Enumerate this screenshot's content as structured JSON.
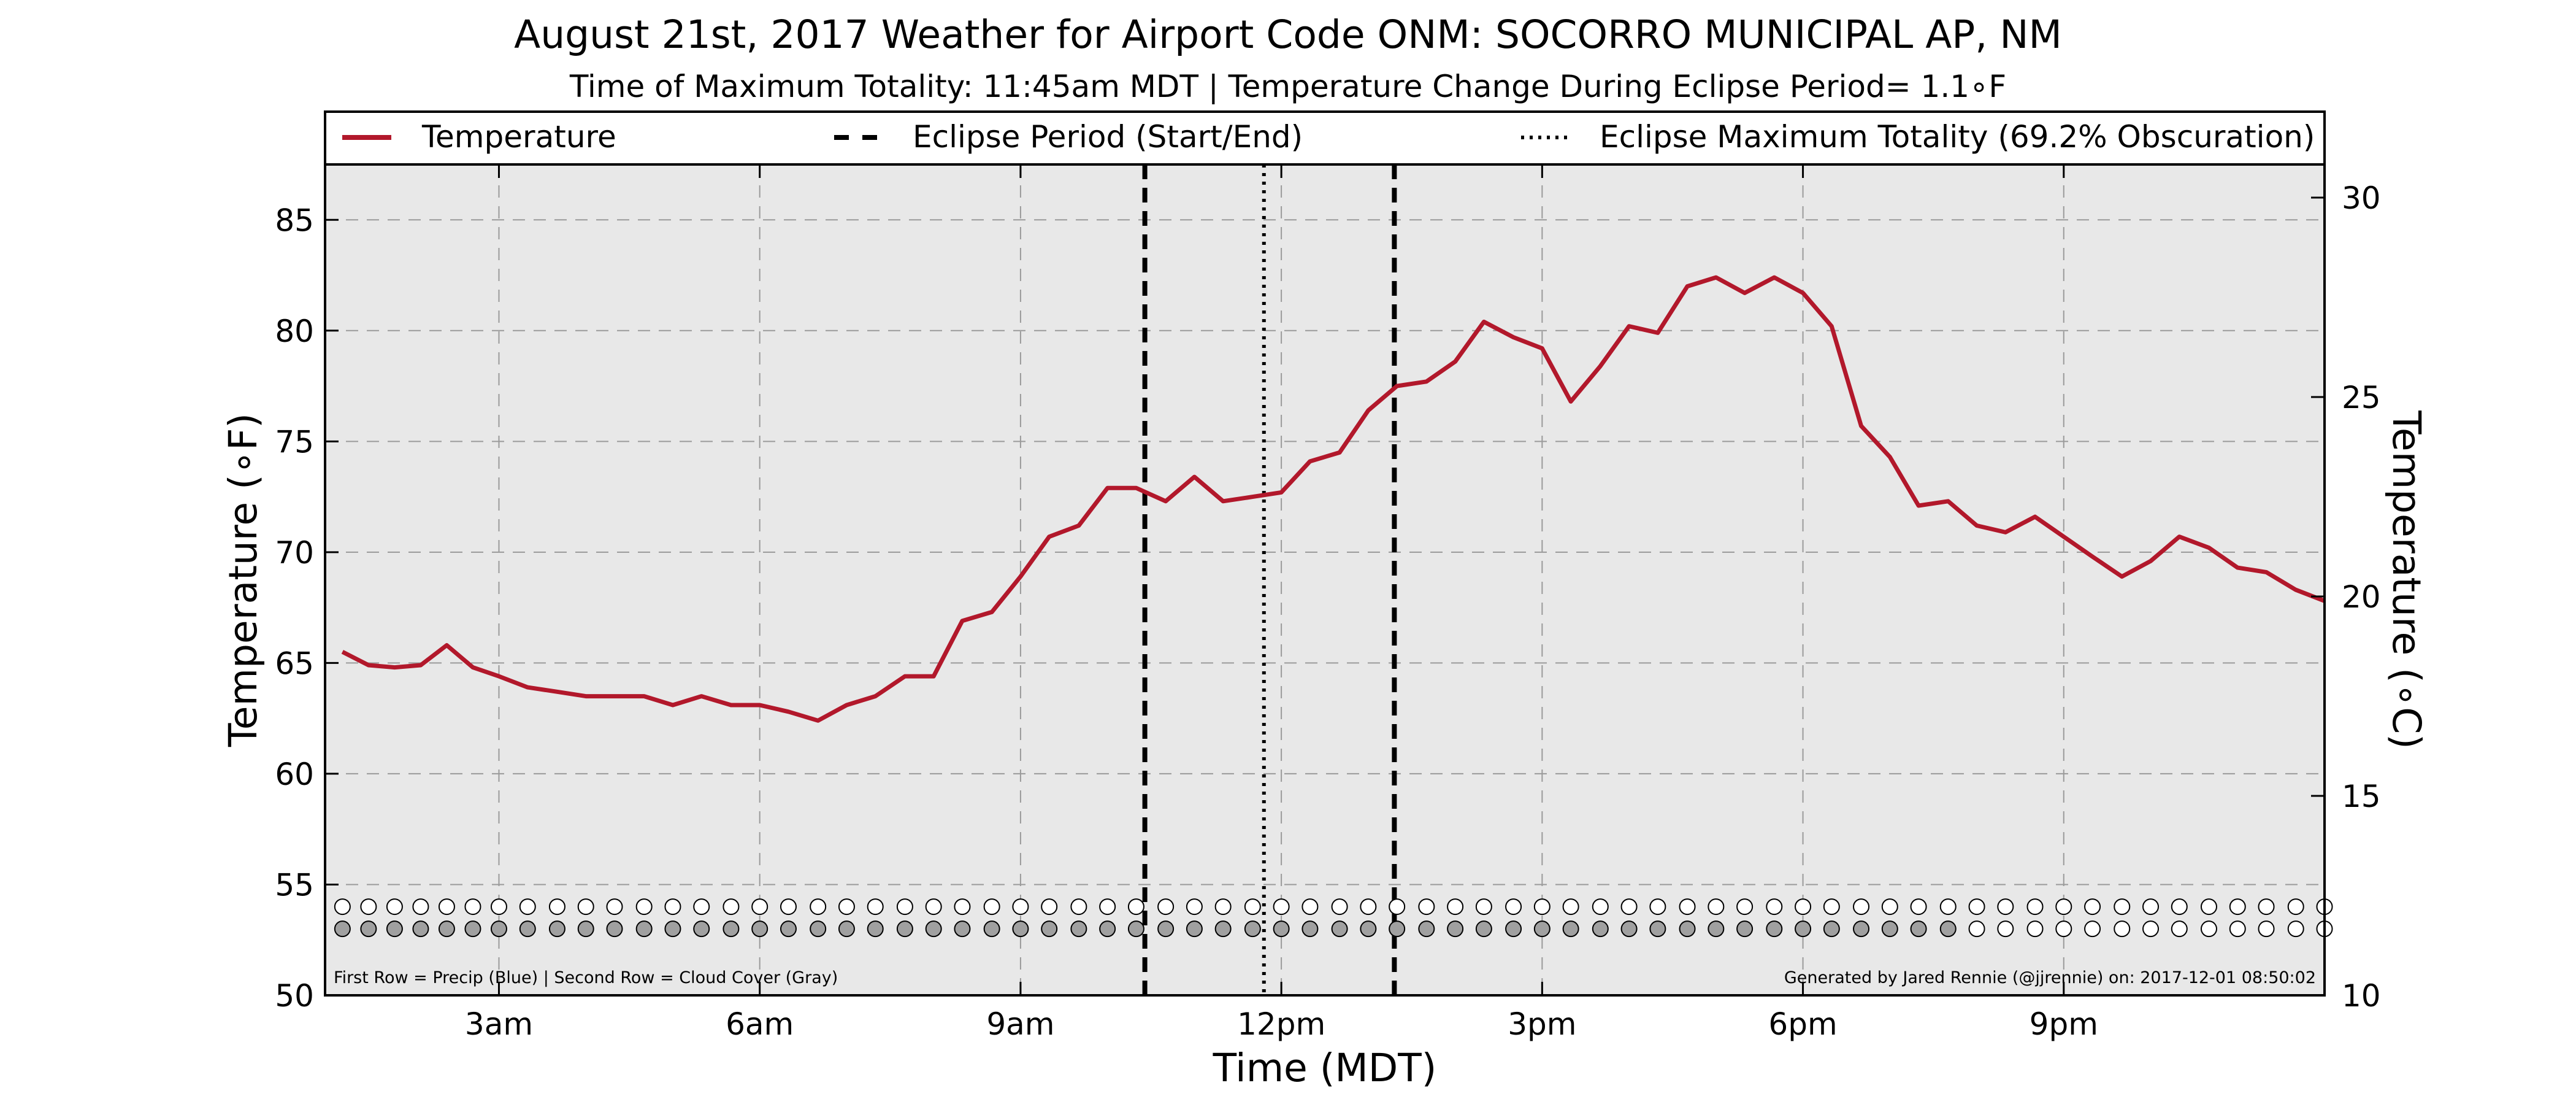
{
  "chart_data": {
    "type": "line",
    "title": "August 21st, 2017 Weather for Airport Code ONM: SOCORRO MUNICIPAL AP, NM",
    "subtitle": "Time of Maximum Totality: 11:45am MDT | Temperature Change During Eclipse Period= 1.1∘F",
    "xlabel": "Time (MDT)",
    "ylabel_left": "Temperature (∘F)",
    "ylabel_right": "Temperature (∘C)",
    "xlim": [
      1.0,
      24.0
    ],
    "ylim": [
      50,
      87.5
    ],
    "ylim_right": [
      10,
      30.83
    ],
    "x_ticks": [
      {
        "x": 3,
        "label": "3am"
      },
      {
        "x": 6,
        "label": "6am"
      },
      {
        "x": 9,
        "label": "9am"
      },
      {
        "x": 12,
        "label": "12pm"
      },
      {
        "x": 15,
        "label": "3pm"
      },
      {
        "x": 18,
        "label": "6pm"
      },
      {
        "x": 21,
        "label": "9pm"
      }
    ],
    "y_ticks_left": [
      50,
      55,
      60,
      65,
      70,
      75,
      80,
      85
    ],
    "y_ticks_right": [
      10,
      15,
      20,
      25,
      30
    ],
    "grid": true,
    "legend": {
      "placement": "top",
      "entries": [
        {
          "label": "Temperature",
          "style": "solid",
          "color": "#b2182b"
        },
        {
          "label": "Eclipse Period (Start/End)",
          "style": "dashed",
          "color": "#000000"
        },
        {
          "label": "Eclipse Maximum Totality (69.2% Obscuration)",
          "style": "dotted",
          "color": "#000000"
        }
      ]
    },
    "series": [
      {
        "name": "Temperature",
        "color": "#b2182b",
        "x": [
          1.2,
          1.5,
          1.8,
          2.1,
          2.4,
          2.7,
          3.0,
          3.33,
          3.67,
          4.0,
          4.33,
          4.67,
          5.0,
          5.33,
          5.67,
          6.0,
          6.33,
          6.67,
          7.0,
          7.33,
          7.67,
          8.0,
          8.33,
          8.67,
          9.0,
          9.33,
          9.67,
          10.0,
          10.33,
          10.67,
          11.0,
          11.33,
          11.67,
          12.0,
          12.33,
          12.67,
          13.0,
          13.33,
          13.67,
          14.0,
          14.33,
          14.67,
          15.0,
          15.33,
          15.67,
          16.0,
          16.33,
          16.67,
          17.0,
          17.33,
          17.67,
          18.0,
          18.33,
          18.67,
          19.0,
          19.33,
          19.67,
          20.0,
          20.33,
          20.67,
          21.0,
          21.33,
          21.67,
          22.0,
          22.33,
          22.67,
          23.0,
          23.33,
          23.67,
          24.0
        ],
        "values": [
          65.5,
          64.9,
          64.8,
          64.9,
          65.8,
          64.8,
          64.4,
          63.9,
          63.7,
          63.5,
          63.5,
          63.5,
          63.1,
          63.5,
          63.1,
          63.1,
          62.8,
          62.4,
          63.1,
          63.5,
          64.4,
          64.4,
          66.9,
          67.3,
          68.9,
          70.7,
          71.2,
          72.9,
          72.9,
          72.3,
          73.4,
          72.3,
          72.5,
          72.7,
          74.1,
          74.5,
          76.4,
          77.5,
          77.7,
          78.6,
          80.4,
          79.7,
          79.2,
          76.8,
          78.4,
          80.2,
          79.9,
          82.0,
          82.4,
          81.7,
          82.4,
          81.7,
          80.2,
          75.7,
          74.3,
          72.1,
          72.3,
          71.2,
          70.9,
          71.6,
          70.7,
          69.8,
          68.9,
          69.6,
          70.7,
          70.2,
          69.3,
          69.1,
          68.3,
          67.8
        ]
      }
    ],
    "eclipse_start": 10.43,
    "eclipse_end": 13.3,
    "eclipse_max": 11.8,
    "precip_row_y": 54.0,
    "cloud_row_y": 53.0,
    "precip_row": [
      0,
      0,
      0,
      0,
      0,
      0,
      0,
      0,
      0,
      0,
      0,
      0,
      0,
      0,
      0,
      0,
      0,
      0,
      0,
      0,
      0,
      0,
      0,
      0,
      0,
      0,
      0,
      0,
      0,
      0,
      0,
      0,
      0,
      0,
      0,
      0,
      0,
      0,
      0,
      0,
      0,
      0,
      0,
      0,
      0,
      0,
      0,
      0,
      0,
      0,
      0,
      0,
      0,
      0,
      0,
      0,
      0,
      0,
      0,
      0,
      0,
      0,
      0,
      0,
      0,
      0,
      0,
      0,
      0,
      0
    ],
    "cloud_row": [
      1,
      1,
      1,
      1,
      1,
      1,
      1,
      1,
      1,
      1,
      1,
      1,
      1,
      1,
      1,
      1,
      1,
      1,
      1,
      1,
      1,
      1,
      1,
      1,
      1,
      1,
      1,
      1,
      1,
      1,
      1,
      1,
      1,
      1,
      1,
      1,
      1,
      1,
      1,
      1,
      1,
      1,
      1,
      1,
      1,
      1,
      1,
      1,
      1,
      1,
      1,
      1,
      1,
      1,
      1,
      1,
      1,
      0,
      0,
      0,
      0,
      0,
      0,
      0,
      0,
      0,
      0,
      0,
      0,
      0
    ],
    "footer_left": "First Row = Precip (Blue) | Second Row = Cloud Cover (Gray)",
    "footer_right": "Generated by Jared Rennie (@jjrennie) on: 2017-12-01 08:50:02",
    "colors": {
      "temperature": "#b2182b",
      "plot_background": "#e8e8e8",
      "cloud_fill": "#a0a0a0",
      "empty_fill": "#ffffff"
    }
  }
}
